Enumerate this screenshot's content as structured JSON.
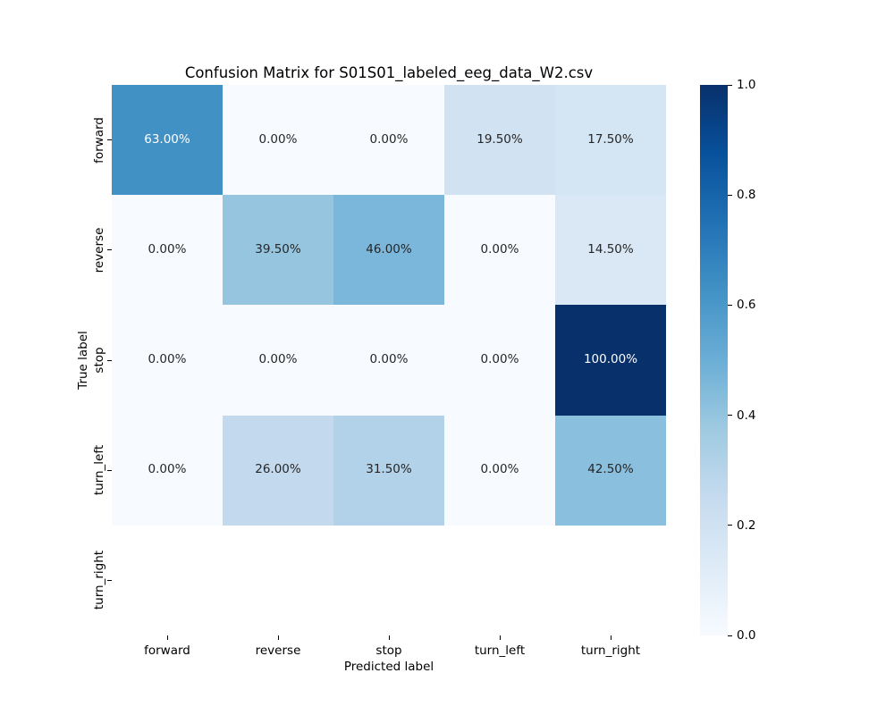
{
  "chart_data": {
    "type": "heatmap",
    "title": "Confusion Matrix for S01S01_labeled_eeg_data_W2.csv",
    "xlabel": "Predicted label",
    "ylabel": "True label",
    "x_categories": [
      "forward",
      "reverse",
      "stop",
      "turn_left",
      "turn_right"
    ],
    "y_categories": [
      "forward",
      "reverse",
      "stop",
      "turn_left",
      "turn_right"
    ],
    "values": [
      [
        0.63,
        0.0,
        0.0,
        0.195,
        0.175
      ],
      [
        0.0,
        0.395,
        0.46,
        0.0,
        0.145
      ],
      [
        0.0,
        0.0,
        0.0,
        0.0,
        1.0
      ],
      [
        0.0,
        0.26,
        0.315,
        0.0,
        0.425
      ],
      [
        null,
        null,
        null,
        null,
        null
      ]
    ],
    "cell_labels": [
      [
        "63.00%",
        "0.00%",
        "0.00%",
        "19.50%",
        "17.50%"
      ],
      [
        "0.00%",
        "39.50%",
        "46.00%",
        "0.00%",
        "14.50%"
      ],
      [
        "0.00%",
        "0.00%",
        "0.00%",
        "0.00%",
        "100.00%"
      ],
      [
        "0.00%",
        "26.00%",
        "31.50%",
        "0.00%",
        "42.50%"
      ],
      [
        null,
        null,
        null,
        null,
        null
      ]
    ],
    "colorbar": {
      "tick_labels": [
        "1.0",
        "0.8",
        "0.6",
        "0.4",
        "0.2",
        "0.0"
      ],
      "range": [
        0.0,
        1.0
      ],
      "legend_position": "right"
    },
    "colormap": {
      "name": "Blues",
      "anchors": [
        "#f7fbff",
        "#deebf7",
        "#c6dbef",
        "#9ecae1",
        "#6baed6",
        "#4292c6",
        "#2171b5",
        "#08519c",
        "#08306b"
      ]
    },
    "annotation_colors": {
      "light": "#ffffff",
      "dark": "#262626"
    },
    "grid": false,
    "background": "#ffffff"
  }
}
